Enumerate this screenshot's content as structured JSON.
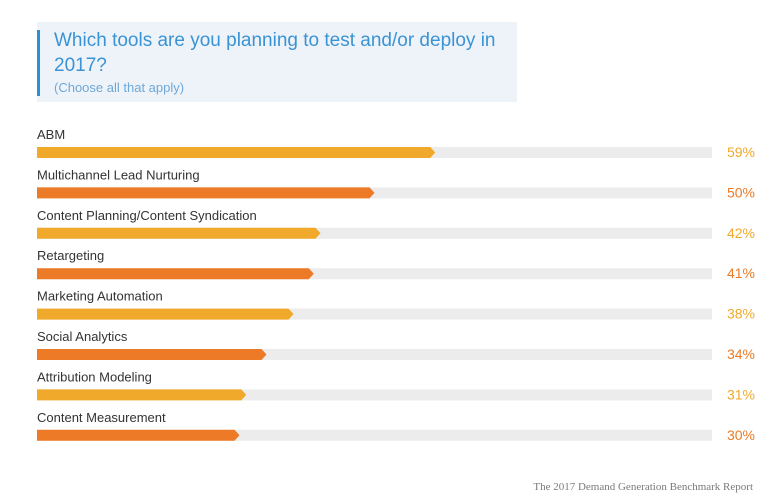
{
  "header": {
    "title": "Which tools are you planning to test and/or deploy in 2017?",
    "subtitle": "(Choose all that apply)"
  },
  "footer": {
    "source": "The 2017 Demand Generation Benchmark Report"
  },
  "chart_data": {
    "type": "bar",
    "orientation": "horizontal",
    "categories": [
      "ABM",
      "Multichannel Lead Nurturing",
      "Content Planning/Content Syndication",
      "Retargeting",
      "Marketing Automation",
      "Social Analytics",
      "Attribution Modeling",
      "Content Measurement"
    ],
    "values": [
      59,
      50,
      42,
      41,
      38,
      34,
      31,
      30
    ],
    "value_labels": [
      "59%",
      "50%",
      "42%",
      "41%",
      "38%",
      "34%",
      "31%",
      "30%"
    ],
    "xlim": [
      0,
      100
    ],
    "grid": false,
    "legend": "none",
    "colors": {
      "bar_odd": "#f0a92a",
      "bar_even": "#ec7a26",
      "track": "#ececec"
    }
  }
}
